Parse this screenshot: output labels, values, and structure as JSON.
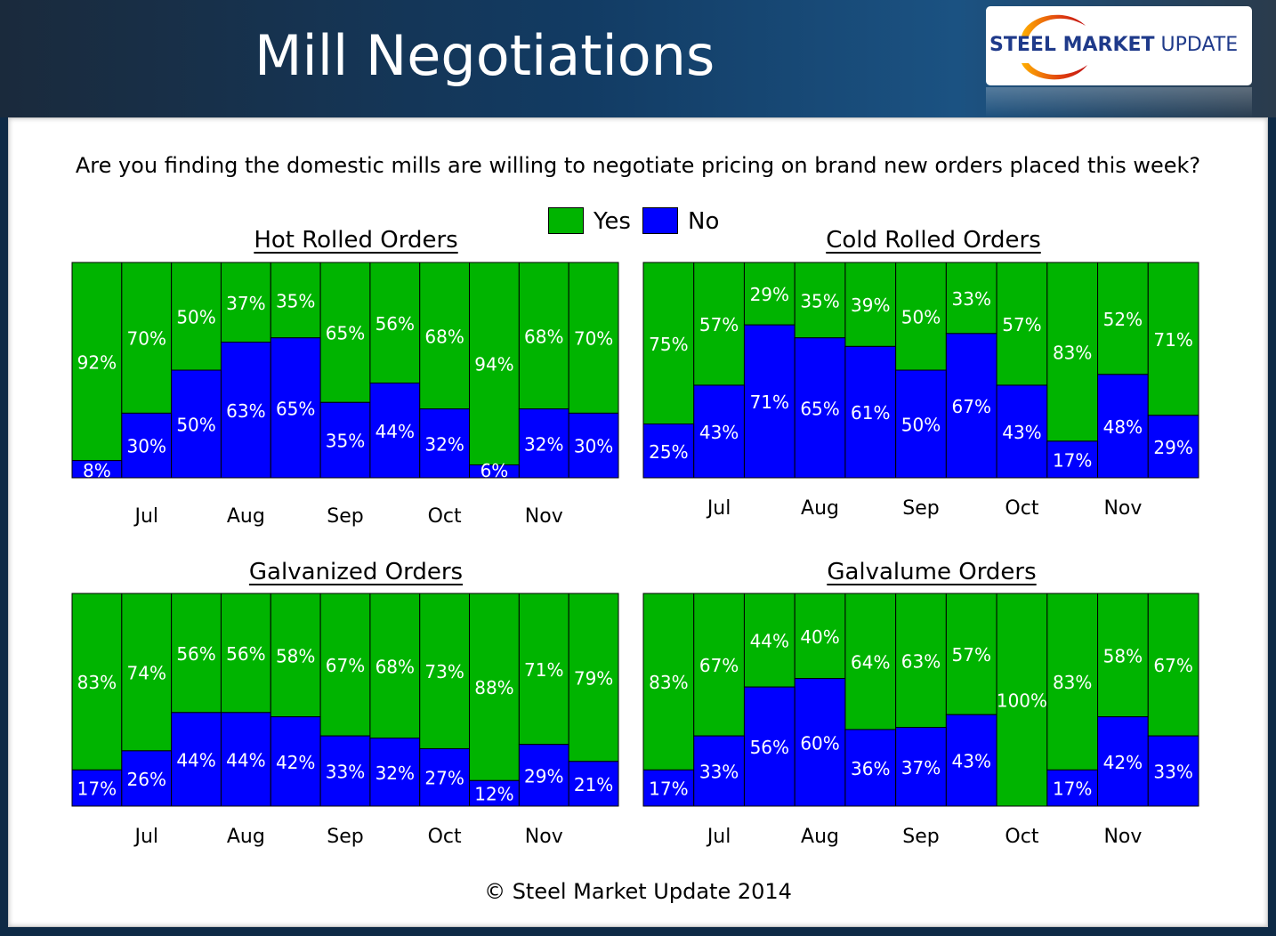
{
  "header": {
    "title": "Mill Negotiations",
    "logo_bold": "STEEL MARKET",
    "logo_light": "UPDATE"
  },
  "question": "Are you finding the domestic mills are willing to negotiate pricing on brand new orders placed this week?",
  "legend": {
    "yes_label": "Yes",
    "no_label": "No",
    "yes_color": "#00b400",
    "no_color": "#0000ff"
  },
  "footer": "© Steel Market Update 2014",
  "chart_data": [
    {
      "type": "bar",
      "stacked": true,
      "title": "Hot Rolled Orders",
      "month_labels": [
        "Jul",
        "Aug",
        "Sep",
        "Oct",
        "Nov"
      ],
      "series": [
        {
          "name": "Yes",
          "values": [
            92,
            70,
            50,
            37,
            35,
            65,
            56,
            68,
            94,
            68,
            70
          ],
          "labels": [
            "92%",
            "70%",
            "50%",
            "37%",
            "35%",
            "65%",
            "56%",
            "68%",
            "94%",
            "68%",
            "70%"
          ]
        },
        {
          "name": "No",
          "values": [
            8,
            30,
            50,
            63,
            65,
            35,
            44,
            32,
            6,
            32,
            30
          ],
          "labels": [
            "8%",
            "30%",
            "50%",
            "63%",
            "65%",
            "35%",
            "44%",
            "32%",
            "6%",
            "32%",
            "30%"
          ]
        }
      ],
      "ylim": [
        0,
        100
      ]
    },
    {
      "type": "bar",
      "stacked": true,
      "title": "Cold Rolled Orders",
      "month_labels": [
        "Jul",
        "Aug",
        "Sep",
        "Oct",
        "Nov"
      ],
      "series": [
        {
          "name": "Yes",
          "values": [
            75,
            57,
            29,
            35,
            39,
            50,
            33,
            57,
            83,
            52,
            71
          ],
          "labels": [
            "75%",
            "57%",
            "29%",
            "35%",
            "39%",
            "50%",
            "33%",
            "57%",
            "83%",
            "52%",
            "71%"
          ]
        },
        {
          "name": "No",
          "values": [
            25,
            43,
            71,
            65,
            61,
            50,
            67,
            43,
            17,
            48,
            29
          ],
          "labels": [
            "25%",
            "43%",
            "71%",
            "65%",
            "61%",
            "50%",
            "67%",
            "43%",
            "17%",
            "48%",
            "29%"
          ]
        }
      ],
      "ylim": [
        0,
        100
      ]
    },
    {
      "type": "bar",
      "stacked": true,
      "title": "Galvanized Orders",
      "month_labels": [
        "Jul",
        "Aug",
        "Sep",
        "Oct",
        "Nov"
      ],
      "series": [
        {
          "name": "Yes",
          "values": [
            83,
            74,
            56,
            56,
            58,
            67,
            68,
            73,
            88,
            71,
            79
          ],
          "labels": [
            "83%",
            "74%",
            "56%",
            "56%",
            "58%",
            "67%",
            "68%",
            "73%",
            "88%",
            "71%",
            "79%"
          ]
        },
        {
          "name": "No",
          "values": [
            17,
            26,
            44,
            44,
            42,
            33,
            32,
            27,
            12,
            29,
            21
          ],
          "labels": [
            "17%",
            "26%",
            "44%",
            "44%",
            "42%",
            "33%",
            "32%",
            "27%",
            "12%",
            "29%",
            "21%"
          ]
        }
      ],
      "ylim": [
        0,
        100
      ]
    },
    {
      "type": "bar",
      "stacked": true,
      "title": "Galvalume Orders",
      "month_labels": [
        "Jul",
        "Aug",
        "Sep",
        "Oct",
        "Nov"
      ],
      "series": [
        {
          "name": "Yes",
          "values": [
            83,
            67,
            44,
            40,
            64,
            63,
            57,
            100,
            83,
            58,
            67
          ],
          "labels": [
            "83%",
            "67%",
            "44%",
            "40%",
            "64%",
            "63%",
            "57%",
            "100%",
            "83%",
            "58%",
            "67%"
          ]
        },
        {
          "name": "No",
          "values": [
            17,
            33,
            56,
            60,
            36,
            37,
            43,
            0,
            17,
            42,
            33
          ],
          "labels": [
            "17%",
            "33%",
            "56%",
            "60%",
            "36%",
            "37%",
            "43%",
            "",
            "17%",
            "42%",
            "33%"
          ]
        }
      ],
      "ylim": [
        0,
        100
      ]
    }
  ]
}
